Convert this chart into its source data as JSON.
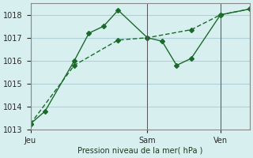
{
  "background_color": "#d8eff0",
  "grid_color": "#b0d0d8",
  "line_color": "#1a6b2a",
  "title": "Pression niveau de la mer( hPa )",
  "xlabel": "Pression niveau de la mer( hPa )",
  "ylim": [
    1013,
    1018.5
  ],
  "yticks": [
    1013,
    1014,
    1015,
    1016,
    1017,
    1018
  ],
  "day_labels": [
    "Jeu",
    "Sam",
    "Ven"
  ],
  "day_positions": [
    0,
    8,
    13
  ],
  "line1_x": [
    0,
    1,
    3,
    4,
    5,
    6,
    8,
    9,
    10,
    11,
    13,
    15
  ],
  "line1_y": [
    1013.25,
    1013.8,
    1016.0,
    1017.2,
    1017.5,
    1018.2,
    1017.0,
    1016.85,
    1015.8,
    1016.1,
    1018.0,
    1018.25
  ],
  "line2_x": [
    0,
    3,
    6,
    8,
    11,
    13,
    15
  ],
  "line2_y": [
    1013.25,
    1015.8,
    1016.9,
    1017.0,
    1017.35,
    1018.0,
    1018.25
  ],
  "xmin": 0,
  "xmax": 15
}
